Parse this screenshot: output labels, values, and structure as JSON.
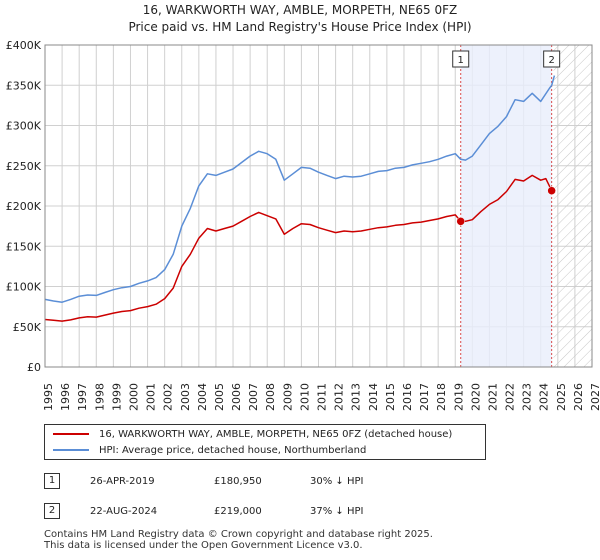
{
  "colors": {
    "property": "#cc0000",
    "hpi": "#5b8ed6",
    "marker_line": "#cc0000",
    "shade": "#e8eefb",
    "grid": "#d0d0d0"
  },
  "chart_data": {
    "type": "line",
    "title": "16, WARKWORTH WAY, AMBLE, MORPETH, NE65 0FZ",
    "subtitle": "Price paid vs. HM Land Registry's House Price Index (HPI)",
    "x_range": [
      1995,
      2027
    ],
    "x_ticks": [
      "1995",
      "1996",
      "1997",
      "1998",
      "1999",
      "2000",
      "2001",
      "2002",
      "2003",
      "2004",
      "2005",
      "2006",
      "2007",
      "2008",
      "2009",
      "2010",
      "2011",
      "2012",
      "2013",
      "2014",
      "2015",
      "2016",
      "2017",
      "2018",
      "2019",
      "2020",
      "2021",
      "2022",
      "2023",
      "2024",
      "2025",
      "2026",
      "2027"
    ],
    "y_range": [
      0,
      400000
    ],
    "y_ticks": [
      {
        "value": 0,
        "label": "£0"
      },
      {
        "value": 50000,
        "label": "£50K"
      },
      {
        "value": 100000,
        "label": "£100K"
      },
      {
        "value": 150000,
        "label": "£150K"
      },
      {
        "value": 200000,
        "label": "£200K"
      },
      {
        "value": 250000,
        "label": "£250K"
      },
      {
        "value": 300000,
        "label": "£300K"
      },
      {
        "value": 350000,
        "label": "£350K"
      },
      {
        "value": 400000,
        "label": "£400K"
      }
    ],
    "grid": true,
    "hatch_from": 2024.75,
    "shade_range": [
      2019.32,
      2024.64
    ],
    "series": [
      {
        "name": "16, WARKWORTH WAY, AMBLE, MORPETH, NE65 0FZ (detached house)",
        "color": "#cc0000",
        "points": [
          [
            1995.0,
            59000
          ],
          [
            1995.5,
            58000
          ],
          [
            1996.0,
            57000
          ],
          [
            1996.5,
            58500
          ],
          [
            1997.0,
            61000
          ],
          [
            1997.5,
            62500
          ],
          [
            1998.0,
            62000
          ],
          [
            1998.5,
            64500
          ],
          [
            1999.0,
            67000
          ],
          [
            1999.5,
            69000
          ],
          [
            2000.0,
            70000
          ],
          [
            2000.5,
            73000
          ],
          [
            2001.0,
            75000
          ],
          [
            2001.5,
            78000
          ],
          [
            2002.0,
            85000
          ],
          [
            2002.5,
            98000
          ],
          [
            2003.0,
            125000
          ],
          [
            2003.5,
            140000
          ],
          [
            2004.0,
            160000
          ],
          [
            2004.5,
            172000
          ],
          [
            2005.0,
            169000
          ],
          [
            2005.5,
            172000
          ],
          [
            2006.0,
            175000
          ],
          [
            2006.5,
            181000
          ],
          [
            2007.0,
            187000
          ],
          [
            2007.5,
            192000
          ],
          [
            2008.0,
            188000
          ],
          [
            2008.5,
            184000
          ],
          [
            2009.0,
            165000
          ],
          [
            2009.5,
            172000
          ],
          [
            2010.0,
            178000
          ],
          [
            2010.5,
            177000
          ],
          [
            2011.0,
            173000
          ],
          [
            2011.5,
            170000
          ],
          [
            2012.0,
            167000
          ],
          [
            2012.5,
            169000
          ],
          [
            2013.0,
            168000
          ],
          [
            2013.5,
            169000
          ],
          [
            2014.0,
            171000
          ],
          [
            2014.5,
            173000
          ],
          [
            2015.0,
            174000
          ],
          [
            2015.5,
            176000
          ],
          [
            2016.0,
            177000
          ],
          [
            2016.5,
            179000
          ],
          [
            2017.0,
            180000
          ],
          [
            2017.5,
            182000
          ],
          [
            2018.0,
            184000
          ],
          [
            2018.5,
            187000
          ],
          [
            2019.0,
            189000
          ],
          [
            2019.32,
            180950
          ],
          [
            2019.6,
            181000
          ],
          [
            2020.0,
            183000
          ],
          [
            2020.5,
            193000
          ],
          [
            2021.0,
            202000
          ],
          [
            2021.5,
            208000
          ],
          [
            2022.0,
            218000
          ],
          [
            2022.5,
            233000
          ],
          [
            2023.0,
            231000
          ],
          [
            2023.5,
            238000
          ],
          [
            2024.0,
            232000
          ],
          [
            2024.3,
            234000
          ],
          [
            2024.64,
            219000
          ]
        ]
      },
      {
        "name": "HPI: Average price, detached house, Northumberland",
        "color": "#5b8ed6",
        "points": [
          [
            1995.0,
            84000
          ],
          [
            1995.5,
            82000
          ],
          [
            1996.0,
            80500
          ],
          [
            1996.5,
            84000
          ],
          [
            1997.0,
            88000
          ],
          [
            1997.5,
            89500
          ],
          [
            1998.0,
            89000
          ],
          [
            1998.5,
            92500
          ],
          [
            1999.0,
            96000
          ],
          [
            1999.5,
            98500
          ],
          [
            2000.0,
            100000
          ],
          [
            2000.5,
            104000
          ],
          [
            2001.0,
            107000
          ],
          [
            2001.5,
            111000
          ],
          [
            2002.0,
            121000
          ],
          [
            2002.5,
            140000
          ],
          [
            2003.0,
            175000
          ],
          [
            2003.5,
            197000
          ],
          [
            2004.0,
            225000
          ],
          [
            2004.5,
            240000
          ],
          [
            2005.0,
            238000
          ],
          [
            2005.5,
            242000
          ],
          [
            2006.0,
            246000
          ],
          [
            2006.5,
            254000
          ],
          [
            2007.0,
            262000
          ],
          [
            2007.5,
            268000
          ],
          [
            2008.0,
            265000
          ],
          [
            2008.5,
            258000
          ],
          [
            2009.0,
            232000
          ],
          [
            2009.5,
            240000
          ],
          [
            2010.0,
            248000
          ],
          [
            2010.5,
            247000
          ],
          [
            2011.0,
            242000
          ],
          [
            2011.5,
            238000
          ],
          [
            2012.0,
            234000
          ],
          [
            2012.5,
            237000
          ],
          [
            2013.0,
            236000
          ],
          [
            2013.5,
            237000
          ],
          [
            2014.0,
            240000
          ],
          [
            2014.5,
            243000
          ],
          [
            2015.0,
            244000
          ],
          [
            2015.5,
            247000
          ],
          [
            2016.0,
            248000
          ],
          [
            2016.5,
            251000
          ],
          [
            2017.0,
            253000
          ],
          [
            2017.5,
            255000
          ],
          [
            2018.0,
            258000
          ],
          [
            2018.5,
            262000
          ],
          [
            2019.0,
            265000
          ],
          [
            2019.32,
            258000
          ],
          [
            2019.6,
            257000
          ],
          [
            2020.0,
            262000
          ],
          [
            2020.5,
            276000
          ],
          [
            2021.0,
            290000
          ],
          [
            2021.5,
            299000
          ],
          [
            2022.0,
            311000
          ],
          [
            2022.5,
            332000
          ],
          [
            2023.0,
            330000
          ],
          [
            2023.5,
            340000
          ],
          [
            2024.0,
            330000
          ],
          [
            2024.5,
            346000
          ],
          [
            2024.64,
            350000
          ],
          [
            2024.8,
            362000
          ]
        ]
      }
    ],
    "annotations": [
      {
        "id": "1",
        "x": 2019.32,
        "value": 180950
      },
      {
        "id": "2",
        "x": 2024.64,
        "value": 219000
      }
    ]
  },
  "legend": {
    "property_label": "16, WARKWORTH WAY, AMBLE, MORPETH, NE65 0FZ (detached house)",
    "hpi_label": "HPI: Average price, detached house, Northumberland"
  },
  "events": [
    {
      "id": "1",
      "date": "26-APR-2019",
      "price": "£180,950",
      "delta": "30% ↓ HPI"
    },
    {
      "id": "2",
      "date": "22-AUG-2024",
      "price": "£219,000",
      "delta": "37% ↓ HPI"
    }
  ],
  "footer": {
    "line1": "Contains HM Land Registry data © Crown copyright and database right 2025.",
    "line2": "This data is licensed under the Open Government Licence v3.0."
  }
}
